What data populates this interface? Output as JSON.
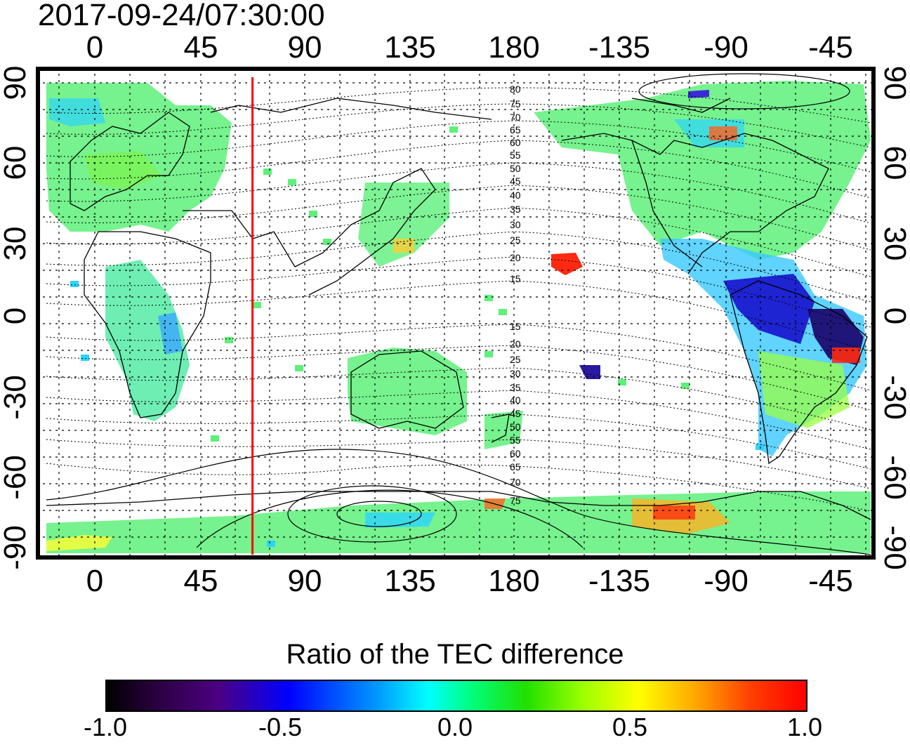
{
  "title": "2017-09-24/07:30:00",
  "longitude_labels": [
    "0",
    "45",
    "90",
    "135",
    "180",
    "-135",
    "-90",
    "-45"
  ],
  "latitude_labels": [
    "90",
    "60",
    "30",
    "0",
    "-30",
    "-60",
    "-90"
  ],
  "contour_labels_north": [
    "80",
    "75",
    "70",
    "65",
    "60",
    "55",
    "50",
    "45",
    "40",
    "35",
    "30",
    "25",
    "20",
    "15"
  ],
  "contour_labels_south": [
    "15",
    "20",
    "25",
    "30",
    "35",
    "40",
    "45",
    "50",
    "55",
    "60",
    "65",
    "70",
    "75"
  ],
  "terminator_longitude": 67.5,
  "colorbar": {
    "title": "Ratio of the TEC difference",
    "ticks": [
      "-1.0",
      "-0.5",
      "0.0",
      "0.5",
      "1.0"
    ],
    "range": [
      -1.0,
      1.0
    ]
  },
  "colors": {
    "terminator": "#ff0000",
    "positive": "#ff0000",
    "negative": "#0000ff",
    "neutral": "#00ff7f"
  }
}
